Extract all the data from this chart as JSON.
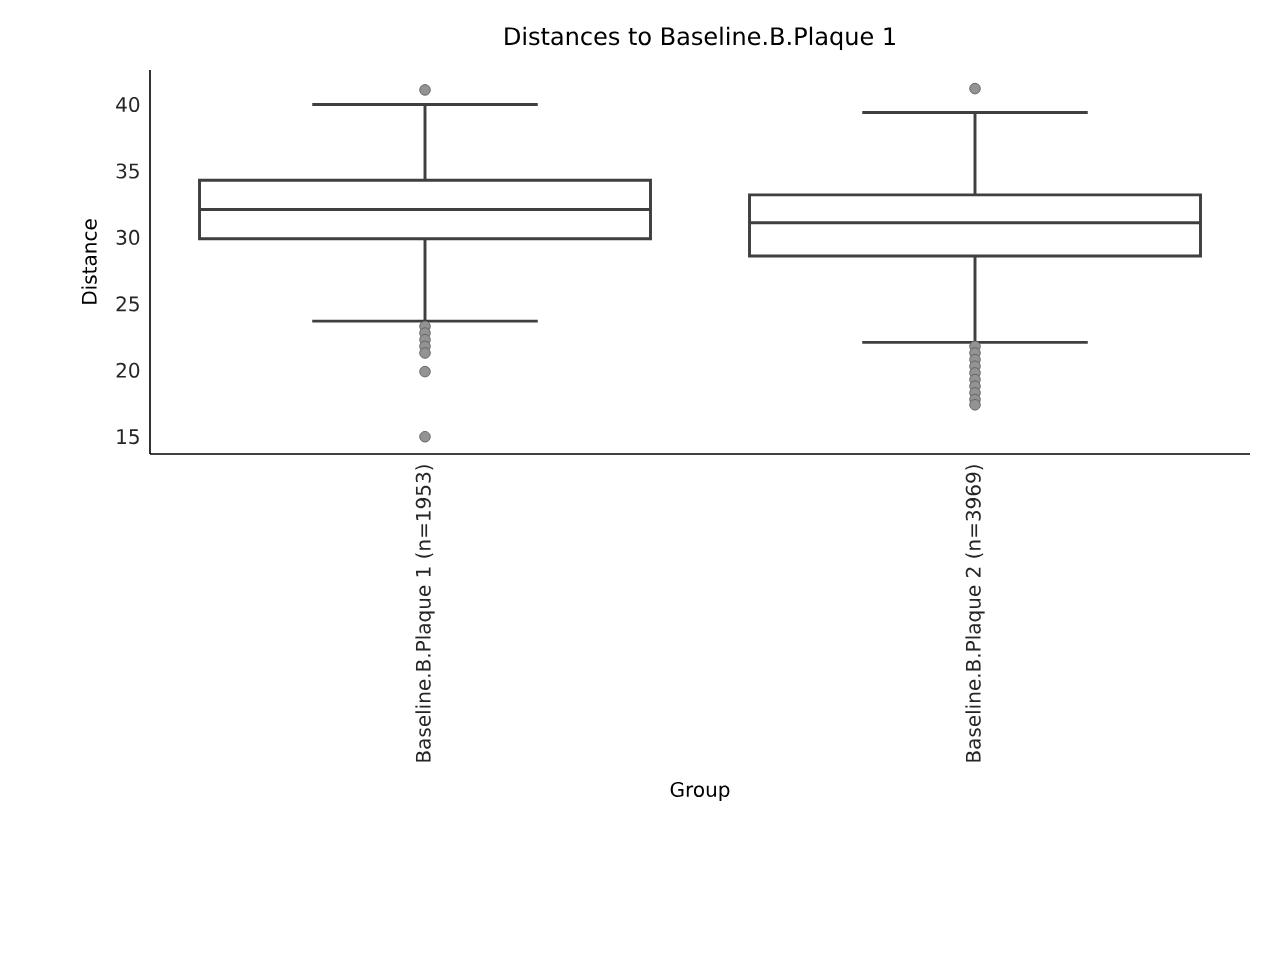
{
  "chart_data": {
    "type": "box",
    "title": "Distances to Baseline.B.Plaque 1",
    "xlabel": "Group",
    "ylabel": "Distance",
    "categories": [
      "Baseline.B.Plaque 1 (n=1953)",
      "Baseline.B.Plaque 2 (n=3969)"
    ],
    "boxes": [
      {
        "low": 23.7,
        "q1": 29.9,
        "median": 32.1,
        "q3": 34.3,
        "high": 40.0,
        "outliers": [
          41.1,
          23.3,
          22.8,
          22.3,
          21.8,
          21.3,
          19.9,
          15.0
        ]
      },
      {
        "low": 22.1,
        "q1": 28.6,
        "median": 31.1,
        "q3": 33.2,
        "high": 39.4,
        "outliers": [
          41.2,
          21.8,
          21.3,
          20.8,
          20.3,
          19.8,
          19.3,
          18.8,
          18.3,
          17.8,
          17.4
        ]
      }
    ],
    "color": "#3f3f3f",
    "ylim": [
      13.7,
      42.6
    ],
    "yticks": [
      15,
      20,
      25,
      30,
      35,
      40
    ]
  }
}
